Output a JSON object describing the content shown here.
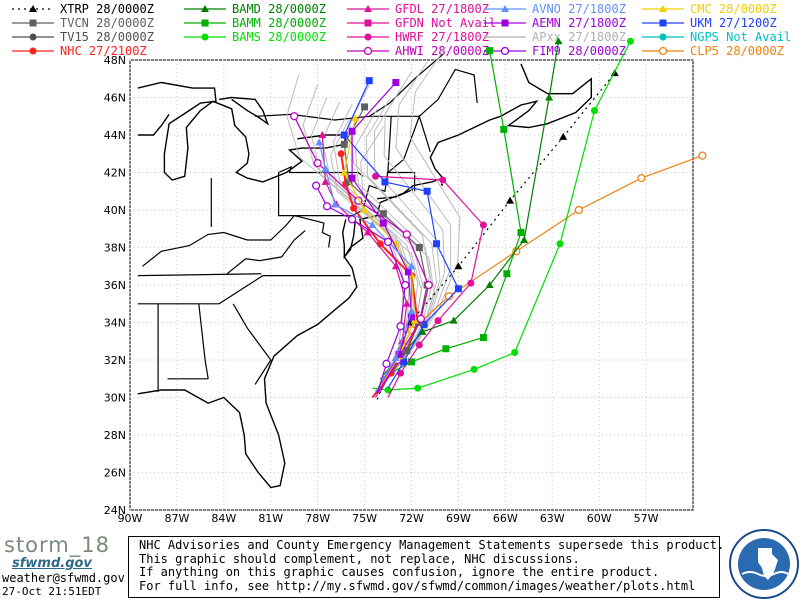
{
  "legend": [
    {
      "label": "XTRP 28/0000Z",
      "color": "#000000",
      "marker": "triangle",
      "dashed": true
    },
    {
      "label": "TVCN 28/0000Z",
      "color": "#606060",
      "marker": "square"
    },
    {
      "label": "TV15 28/0000Z",
      "color": "#505050",
      "marker": "circle"
    },
    {
      "label": "NHC 27/2100Z",
      "color": "#ff2020",
      "marker": "circle"
    },
    {
      "label": "BAMD 28/0000Z",
      "color": "#008000",
      "marker": "triangle"
    },
    {
      "label": "BAMM 28/0000Z",
      "color": "#00b000",
      "marker": "square"
    },
    {
      "label": "BAMS 28/0000Z",
      "color": "#00e000",
      "marker": "circle"
    },
    {
      "label": "GFDL 27/1800Z",
      "color": "#e0109a",
      "marker": "triangle"
    },
    {
      "label": "GFDN Not Avail",
      "color": "#e0109a",
      "marker": "square"
    },
    {
      "label": "HWRF 27/1800Z",
      "color": "#e0109a",
      "marker": "circle"
    },
    {
      "label": "AHWI  28/0000Z",
      "color": "#c000c0",
      "marker": "ring"
    },
    {
      "label": "AVNO 27/1800Z",
      "color": "#6090ff",
      "marker": "triangle"
    },
    {
      "label": "AEMN 27/1800Z",
      "color": "#a000e0",
      "marker": "square"
    },
    {
      "label": "APxx  27/1800Z",
      "color": "#b0b0b0",
      "marker": "none"
    },
    {
      "label": "FIM9  28/0000Z",
      "color": "#a000e0",
      "marker": "ring"
    },
    {
      "label": "CMC   28/0000Z",
      "color": "#f0d000",
      "marker": "triangle"
    },
    {
      "label": "UKM   27/1200Z",
      "color": "#2040ff",
      "marker": "square"
    },
    {
      "label": "NGPS  Not Avail",
      "color": "#00c0c0",
      "marker": "circle"
    },
    {
      "label": "CLP5  28/0000Z",
      "color": "#f08010",
      "marker": "ring"
    }
  ],
  "axes": {
    "lat_labels": [
      "48N",
      "46N",
      "44N",
      "42N",
      "40N",
      "38N",
      "36N",
      "34N",
      "32N",
      "30N",
      "28N",
      "26N",
      "24N"
    ],
    "lon_labels": [
      "90W",
      "87W",
      "84W",
      "81W",
      "78W",
      "75W",
      "72W",
      "69W",
      "66W",
      "63W",
      "60W",
      "57W"
    ],
    "lat_range": [
      24,
      48
    ],
    "lon_range": [
      -90,
      -54
    ]
  },
  "tracks": [
    {
      "name": "XTRP",
      "color": "#000000",
      "dashed": true,
      "marker": "triangle",
      "points": [
        [
          -74.2,
          29.9
        ],
        [
          -72.1,
          34.0
        ],
        [
          -69.0,
          37.0
        ],
        [
          -65.7,
          40.5
        ],
        [
          -62.3,
          43.9
        ],
        [
          -59.0,
          47.3
        ]
      ]
    },
    {
      "name": "CLP5",
      "color": "#f08010",
      "marker": "ring",
      "points": [
        [
          -73.8,
          30.8
        ],
        [
          -72.0,
          33.6
        ],
        [
          -69.6,
          35.4
        ],
        [
          -65.3,
          37.8
        ],
        [
          -61.3,
          40.0
        ],
        [
          -57.3,
          41.7
        ],
        [
          -53.4,
          42.9
        ]
      ]
    },
    {
      "name": "BAMS",
      "color": "#00e000",
      "marker": "circle",
      "points": [
        [
          -74.5,
          30.5
        ],
        [
          -73.5,
          30.4
        ],
        [
          -71.6,
          30.5
        ],
        [
          -68.0,
          31.5
        ],
        [
          -65.4,
          32.4
        ],
        [
          -62.5,
          38.2
        ],
        [
          -60.3,
          45.3
        ],
        [
          -58.0,
          49.0
        ]
      ]
    },
    {
      "name": "BAMM",
      "color": "#00b000",
      "marker": "square",
      "points": [
        [
          -74.0,
          31.0
        ],
        [
          -72.0,
          31.9
        ],
        [
          -69.8,
          32.6
        ],
        [
          -67.4,
          33.2
        ],
        [
          -65.9,
          36.6
        ],
        [
          -65.0,
          38.8
        ],
        [
          -66.1,
          44.3
        ],
        [
          -67.0,
          48.5
        ]
      ]
    },
    {
      "name": "BAMD",
      "color": "#008000",
      "marker": "triangle",
      "points": [
        [
          -73.8,
          31.2
        ],
        [
          -71.3,
          33.5
        ],
        [
          -69.3,
          34.1
        ],
        [
          -67.0,
          36.0
        ],
        [
          -64.8,
          38.4
        ],
        [
          -63.2,
          46.0
        ],
        [
          -62.6,
          49.0
        ]
      ]
    },
    {
      "name": "HWRF",
      "color": "#e0109a",
      "marker": "circle",
      "points": [
        [
          -73.5,
          30.0
        ],
        [
          -72.7,
          31.3
        ],
        [
          -71.5,
          32.8
        ],
        [
          -70.3,
          34.1
        ],
        [
          -68.2,
          36.1
        ],
        [
          -67.4,
          39.2
        ],
        [
          -70.0,
          41.6
        ],
        [
          -74.3,
          41.8
        ]
      ]
    },
    {
      "name": "NHC",
      "color": "#ff2020",
      "marker": "circle",
      "points": [
        [
          -74.5,
          30.0
        ],
        [
          -73.3,
          31.3
        ],
        [
          -72.3,
          32.5
        ],
        [
          -71.6,
          34.0
        ],
        [
          -72.0,
          36.5
        ],
        [
          -74.0,
          38.2
        ],
        [
          -75.7,
          40.1
        ],
        [
          -76.2,
          41.4
        ],
        [
          -76.5,
          43.0
        ]
      ]
    },
    {
      "name": "UKM",
      "color": "#2040ff",
      "marker": "square",
      "points": [
        [
          -73.5,
          30.5
        ],
        [
          -72.5,
          31.9
        ],
        [
          -71.2,
          33.9
        ],
        [
          -69.0,
          35.8
        ],
        [
          -70.4,
          38.2
        ],
        [
          -71.0,
          41.0
        ],
        [
          -73.7,
          41.5
        ],
        [
          -76.3,
          44.0
        ],
        [
          -74.7,
          46.9
        ]
      ]
    },
    {
      "name": "TVCN",
      "color": "#606060",
      "marker": "square",
      "points": [
        [
          -74.0,
          30.5
        ],
        [
          -72.3,
          32.5
        ],
        [
          -71.5,
          34.0
        ],
        [
          -71.0,
          36.0
        ],
        [
          -71.5,
          38.0
        ],
        [
          -73.8,
          39.8
        ],
        [
          -76.0,
          41.5
        ],
        [
          -76.3,
          43.5
        ],
        [
          -75.0,
          45.5
        ]
      ]
    },
    {
      "name": "GFDL",
      "color": "#e0109a",
      "marker": "triangle",
      "points": [
        [
          -74.3,
          30.0
        ],
        [
          -73.3,
          31.5
        ],
        [
          -72.6,
          33.0
        ],
        [
          -72.3,
          35.0
        ],
        [
          -73.0,
          37.0
        ],
        [
          -74.8,
          38.8
        ],
        [
          -76.8,
          40.3
        ],
        [
          -77.5,
          41.5
        ],
        [
          -77.7,
          44.0
        ]
      ]
    },
    {
      "name": "AHWI",
      "color": "#c000c0",
      "marker": "ring",
      "points": [
        [
          -74.0,
          30.3
        ],
        [
          -72.9,
          32.0
        ],
        [
          -71.4,
          34.2
        ],
        [
          -70.9,
          36.0
        ],
        [
          -72.3,
          38.7
        ],
        [
          -75.4,
          40.5
        ],
        [
          -78.0,
          42.5
        ],
        [
          -79.5,
          45.0
        ]
      ]
    },
    {
      "name": "CMC",
      "color": "#f0d000",
      "marker": "triangle",
      "points": [
        [
          -74.0,
          30.6
        ],
        [
          -72.8,
          32.2
        ],
        [
          -71.8,
          34.1
        ],
        [
          -72.0,
          36.5
        ],
        [
          -73.0,
          38.2
        ],
        [
          -75.0,
          40.0
        ],
        [
          -76.3,
          42.0
        ],
        [
          -75.6,
          44.9
        ]
      ]
    },
    {
      "name": "AEMN",
      "color": "#a000e0",
      "marker": "square",
      "points": [
        [
          -74.2,
          30.4
        ],
        [
          -72.8,
          32.3
        ],
        [
          -72.0,
          34.3
        ],
        [
          -72.2,
          36.7
        ],
        [
          -73.8,
          39.3
        ],
        [
          -75.8,
          41.7
        ],
        [
          -75.8,
          44.2
        ],
        [
          -73.0,
          46.8
        ]
      ]
    },
    {
      "name": "AVNO",
      "color": "#6090ff",
      "marker": "triangle",
      "points": [
        [
          -74.3,
          30.3
        ],
        [
          -73.0,
          32.1
        ],
        [
          -72.0,
          34.6
        ],
        [
          -72.0,
          37.0
        ],
        [
          -74.5,
          39.2
        ],
        [
          -76.9,
          40.3
        ],
        [
          -77.5,
          42.2
        ],
        [
          -77.9,
          43.6
        ]
      ]
    },
    {
      "name": "FIM9",
      "color": "#a000e0",
      "marker": "ring",
      "points": [
        [
          -74.2,
          30.2
        ],
        [
          -73.6,
          31.8
        ],
        [
          -72.7,
          33.8
        ],
        [
          -72.4,
          36.0
        ],
        [
          -73.5,
          38.3
        ],
        [
          -75.8,
          39.5
        ],
        [
          -77.4,
          40.2
        ],
        [
          -78.1,
          41.3
        ]
      ]
    }
  ],
  "apxx_color": "#bbbbbb",
  "footer": {
    "logo": "storm_18",
    "logo_sub": "sfwmd.gov",
    "email": "weather@sfwmd.gov",
    "timestamp": "27-Oct 21:51EDT",
    "disclaimer": [
      "NHC Advisories and County Emergency Management Statements supersede this product.",
      "This graphic should complement, not replace, NHC discussions.",
      "If anything on this graphic causes confusion, ignore the entire product.",
      "For full info, see  http://my.sfwmd.gov/sfwmd/common/images/weather/plots.html"
    ],
    "seal_text": "SOUTH FLORIDA WATER MANAGEMENT DISTRICT"
  }
}
